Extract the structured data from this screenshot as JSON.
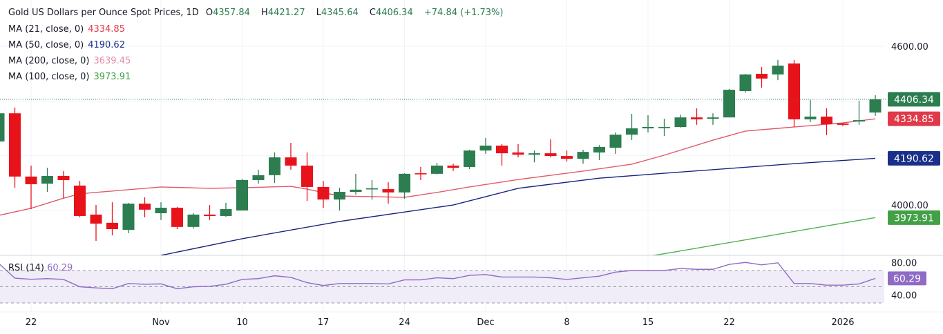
{
  "header": {
    "title": "Gold US Dollars per Ounce Spot Prices, 1D",
    "open_label": "O",
    "open": "4357.84",
    "high_label": "H",
    "high": "4421.27",
    "low_label": "L",
    "low": "4345.64",
    "close_label": "C",
    "close": "4406.34",
    "change": "+74.84 (+1.73%)"
  },
  "indicators": [
    {
      "label": "MA (21, close, 0)",
      "value": "4334.85",
      "color": "#e03a4a"
    },
    {
      "label": "MA (50, close, 0)",
      "value": "4190.62",
      "color": "#1a2f8a"
    },
    {
      "label": "MA (200, close, 0)",
      "value": "3639.45",
      "color": "#e58aa8"
    },
    {
      "label": "MA (100, close, 0)",
      "value": "3973.91",
      "color": "#43a047"
    }
  ],
  "rsi": {
    "label": "RSI (14)",
    "value": "60.29",
    "color": "#8e6cc6"
  },
  "colors": {
    "up": "#2c7d4f",
    "down": "#e8121b",
    "last_price": "#2c7d4f"
  },
  "chart_data": {
    "type": "candlestick",
    "interval": "1D",
    "price_axis": {
      "ticks": [
        "4600.00",
        "4000.00"
      ],
      "tick_values": [
        4600,
        4000
      ]
    },
    "rsi_axis": {
      "ticks": [
        "80.00",
        "40.00"
      ],
      "tick_values": [
        80,
        40
      ],
      "band": [
        30,
        70
      ],
      "midline": 50
    },
    "x_ticks": [
      {
        "label": "22",
        "index": 3
      },
      {
        "label": "Nov",
        "index": 11
      },
      {
        "label": "10",
        "index": 16
      },
      {
        "label": "17",
        "index": 21
      },
      {
        "label": "24",
        "index": 26
      },
      {
        "label": "Dec",
        "index": 31
      },
      {
        "label": "8",
        "index": 36
      },
      {
        "label": "15",
        "index": 41
      },
      {
        "label": "22",
        "index": 46
      },
      {
        "label": "2026",
        "index": 53
      }
    ],
    "candles": [
      {
        "o": 4252,
        "h": 4366,
        "l": 4252,
        "c": 4355
      },
      {
        "o": 4355,
        "h": 4376,
        "l": 4083,
        "c": 4124
      },
      {
        "o": 4124,
        "h": 4164,
        "l": 4005,
        "c": 4096
      },
      {
        "o": 4098,
        "h": 4156,
        "l": 4068,
        "c": 4126
      },
      {
        "o": 4126,
        "h": 4144,
        "l": 4045,
        "c": 4111
      },
      {
        "o": 4091,
        "h": 4108,
        "l": 3975,
        "c": 3980
      },
      {
        "o": 3985,
        "h": 4020,
        "l": 3889,
        "c": 3952
      },
      {
        "o": 3955,
        "h": 4030,
        "l": 3909,
        "c": 3932
      },
      {
        "o": 3929,
        "h": 4028,
        "l": 3917,
        "c": 4025
      },
      {
        "o": 4025,
        "h": 4048,
        "l": 3975,
        "c": 4003
      },
      {
        "o": 3990,
        "h": 4030,
        "l": 3965,
        "c": 4010
      },
      {
        "o": 4010,
        "h": 4013,
        "l": 3932,
        "c": 3940
      },
      {
        "o": 3940,
        "h": 3990,
        "l": 3934,
        "c": 3985
      },
      {
        "o": 3985,
        "h": 4020,
        "l": 3965,
        "c": 3980
      },
      {
        "o": 3980,
        "h": 4028,
        "l": 3977,
        "c": 4005
      },
      {
        "o": 4000,
        "h": 4116,
        "l": 4000,
        "c": 4111
      },
      {
        "o": 4111,
        "h": 4149,
        "l": 4098,
        "c": 4129
      },
      {
        "o": 4129,
        "h": 4212,
        "l": 4101,
        "c": 4194
      },
      {
        "o": 4194,
        "h": 4247,
        "l": 4149,
        "c": 4164
      },
      {
        "o": 4164,
        "h": 4212,
        "l": 4035,
        "c": 4086
      },
      {
        "o": 4086,
        "h": 4108,
        "l": 4010,
        "c": 4040
      },
      {
        "o": 4040,
        "h": 4083,
        "l": 4000,
        "c": 4068
      },
      {
        "o": 4068,
        "h": 4134,
        "l": 4058,
        "c": 4076
      },
      {
        "o": 4078,
        "h": 4111,
        "l": 4040,
        "c": 4081
      },
      {
        "o": 4078,
        "h": 4103,
        "l": 4025,
        "c": 4066
      },
      {
        "o": 4066,
        "h": 4136,
        "l": 4043,
        "c": 4134
      },
      {
        "o": 4136,
        "h": 4159,
        "l": 4111,
        "c": 4134
      },
      {
        "o": 4134,
        "h": 4174,
        "l": 4131,
        "c": 4164
      },
      {
        "o": 4164,
        "h": 4171,
        "l": 4144,
        "c": 4156
      },
      {
        "o": 4159,
        "h": 4222,
        "l": 4151,
        "c": 4219
      },
      {
        "o": 4219,
        "h": 4265,
        "l": 4207,
        "c": 4237
      },
      {
        "o": 4237,
        "h": 4242,
        "l": 4164,
        "c": 4209
      },
      {
        "o": 4212,
        "h": 4242,
        "l": 4194,
        "c": 4204
      },
      {
        "o": 4204,
        "h": 4219,
        "l": 4176,
        "c": 4209
      },
      {
        "o": 4209,
        "h": 4260,
        "l": 4194,
        "c": 4199
      },
      {
        "o": 4199,
        "h": 4219,
        "l": 4179,
        "c": 4189
      },
      {
        "o": 4189,
        "h": 4222,
        "l": 4171,
        "c": 4214
      },
      {
        "o": 4212,
        "h": 4239,
        "l": 4184,
        "c": 4232
      },
      {
        "o": 4229,
        "h": 4285,
        "l": 4207,
        "c": 4277
      },
      {
        "o": 4277,
        "h": 4353,
        "l": 4257,
        "c": 4300
      },
      {
        "o": 4300,
        "h": 4348,
        "l": 4285,
        "c": 4305
      },
      {
        "o": 4303,
        "h": 4335,
        "l": 4272,
        "c": 4305
      },
      {
        "o": 4305,
        "h": 4350,
        "l": 4303,
        "c": 4340
      },
      {
        "o": 4340,
        "h": 4373,
        "l": 4313,
        "c": 4333
      },
      {
        "o": 4335,
        "h": 4355,
        "l": 4313,
        "c": 4340
      },
      {
        "o": 4340,
        "h": 4444,
        "l": 4340,
        "c": 4441
      },
      {
        "o": 4436,
        "h": 4499,
        "l": 4431,
        "c": 4497
      },
      {
        "o": 4499,
        "h": 4524,
        "l": 4449,
        "c": 4482
      },
      {
        "o": 4497,
        "h": 4550,
        "l": 4476,
        "c": 4529
      },
      {
        "o": 4537,
        "h": 4550,
        "l": 4305,
        "c": 4333
      },
      {
        "o": 4333,
        "h": 4403,
        "l": 4323,
        "c": 4343
      },
      {
        "o": 4343,
        "h": 4373,
        "l": 4275,
        "c": 4315
      },
      {
        "o": 4318,
        "h": 4320,
        "l": 4308,
        "c": 4313
      },
      {
        "o": 4325,
        "h": 4401,
        "l": 4313,
        "c": 4330
      },
      {
        "o": 4357.84,
        "h": 4421.27,
        "l": 4345.64,
        "c": 4406.34
      }
    ],
    "moving_averages": [
      {
        "name": "MA (21, close, 0)",
        "color": "#e05a6a",
        "points": [
          [
            1,
            3982
          ],
          [
            3,
            4008
          ],
          [
            5,
            4045
          ],
          [
            6,
            4061
          ],
          [
            11,
            4086
          ],
          [
            14,
            4081
          ],
          [
            16,
            4083
          ],
          [
            19,
            4088
          ],
          [
            20,
            4078
          ],
          [
            22,
            4053
          ],
          [
            26,
            4048
          ],
          [
            28,
            4066
          ],
          [
            30,
            4086
          ],
          [
            33,
            4113
          ],
          [
            37,
            4144
          ],
          [
            40,
            4169
          ],
          [
            42,
            4202
          ],
          [
            45,
            4257
          ],
          [
            47,
            4290
          ],
          [
            49,
            4300
          ],
          [
            51,
            4310
          ],
          [
            53,
            4320
          ],
          [
            55,
            4334.85
          ]
        ]
      },
      {
        "name": "MA (50, close, 0)",
        "color": "#1a237e",
        "points": [
          [
            11,
            3836
          ],
          [
            16,
            3897
          ],
          [
            22,
            3960
          ],
          [
            29,
            4020
          ],
          [
            33,
            4081
          ],
          [
            38,
            4118
          ],
          [
            42,
            4136
          ],
          [
            50,
            4171
          ],
          [
            55,
            4190.62
          ]
        ]
      },
      {
        "name": "MA (100, close, 0)",
        "color": "#4caf50",
        "points": [
          [
            41,
            3832
          ],
          [
            55,
            3973.91
          ]
        ]
      }
    ],
    "rsi_values": [
      79,
      60.6,
      59.2,
      60,
      59,
      50,
      48.6,
      47.5,
      54,
      53,
      53.5,
      47.5,
      50,
      50.5,
      53,
      59,
      60,
      63.5,
      61.5,
      55,
      51.5,
      54,
      54,
      54,
      53.5,
      58.5,
      58.5,
      61,
      60,
      64,
      65,
      62,
      62,
      62,
      61,
      59,
      61,
      63,
      68,
      70,
      70,
      70,
      72.5,
      71.5,
      71.5,
      77.5,
      80,
      77,
      79.5,
      54,
      54,
      52,
      52,
      53.5,
      60.29
    ]
  }
}
